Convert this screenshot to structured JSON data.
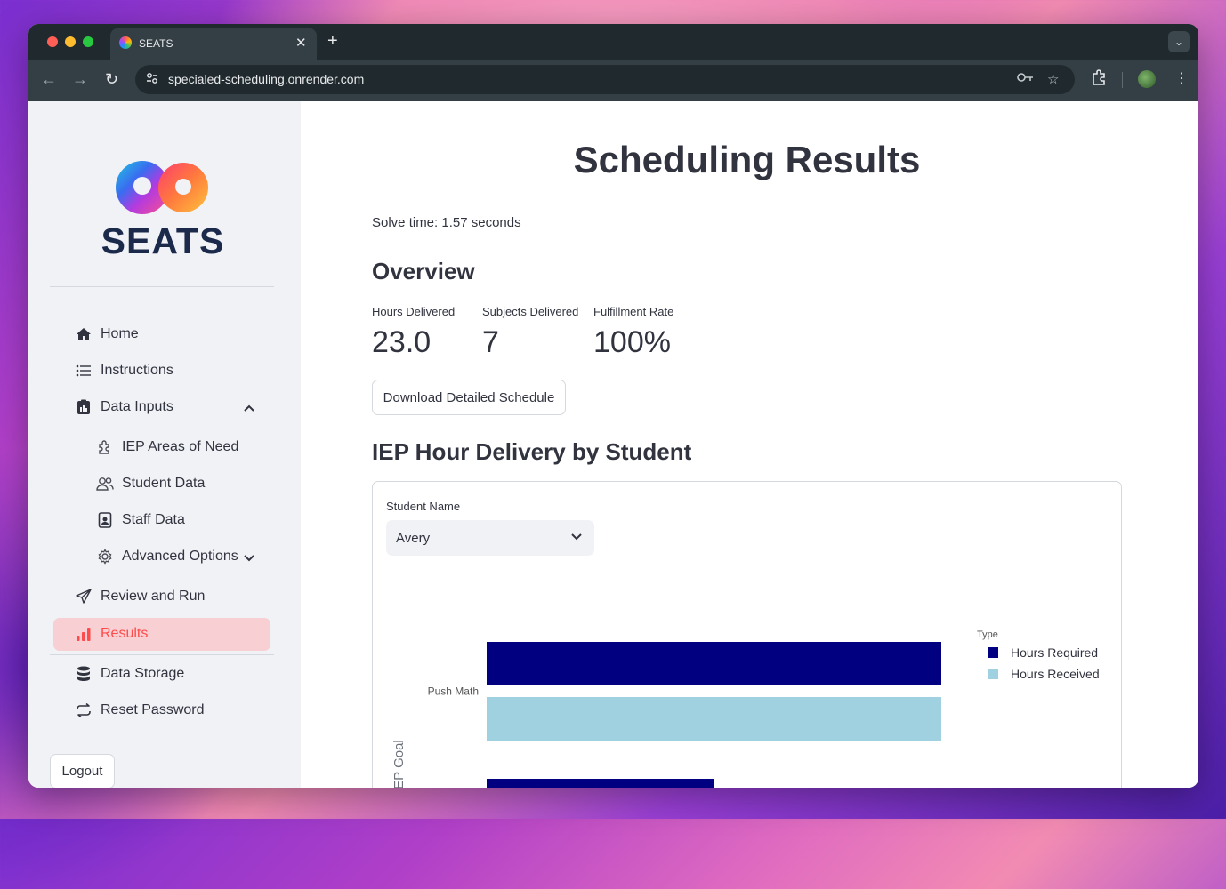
{
  "browser": {
    "tab_title": "SEATS",
    "url": "specialed-scheduling.onrender.com"
  },
  "sidebar": {
    "logo_text": "SEATS",
    "items": [
      {
        "label": "Home",
        "icon": "home-icon"
      },
      {
        "label": "Instructions",
        "icon": "list-icon"
      },
      {
        "label": "Data Inputs",
        "icon": "clipboard-icon",
        "expanded": true
      },
      {
        "label": "IEP Areas of Need",
        "icon": "puzzle-icon"
      },
      {
        "label": "Student Data",
        "icon": "people-icon"
      },
      {
        "label": "Staff Data",
        "icon": "id-badge-icon"
      },
      {
        "label": "Advanced Options",
        "icon": "gear-icon",
        "expanded": false
      },
      {
        "label": "Review and Run",
        "icon": "send-icon"
      },
      {
        "label": "Results",
        "icon": "bar-chart-icon",
        "active": true
      },
      {
        "label": "Data Storage",
        "icon": "database-icon"
      },
      {
        "label": "Reset Password",
        "icon": "refresh-icon"
      }
    ],
    "logout_label": "Logout",
    "active_color": "#ff4b4b"
  },
  "main": {
    "title": "Scheduling Results",
    "solve_time": "Solve time: 1.57 seconds",
    "overview_heading": "Overview",
    "metrics": [
      {
        "label": "Hours Delivered",
        "value": "23.0"
      },
      {
        "label": "Subjects Delivered",
        "value": "7"
      },
      {
        "label": "Fulfillment Rate",
        "value": "100%"
      }
    ],
    "download_label": "Download Detailed Schedule",
    "iep_heading": "IEP Hour Delivery by Student",
    "student_select": {
      "label": "Student Name",
      "value": "Avery"
    }
  },
  "chart_data": {
    "type": "bar",
    "orientation": "horizontal",
    "ylabel": "IEP Goal",
    "categories": [
      "Push Math",
      ""
    ],
    "legend_title": "Type",
    "legend_position": "top-right",
    "series": [
      {
        "name": "Hours Required",
        "color": "#000080",
        "values": [
          1.0,
          0.5
        ]
      },
      {
        "name": "Hours Received",
        "color": "#9fd1e0",
        "values": [
          1.0,
          null
        ]
      }
    ],
    "xlim": [
      0,
      1.0
    ]
  }
}
